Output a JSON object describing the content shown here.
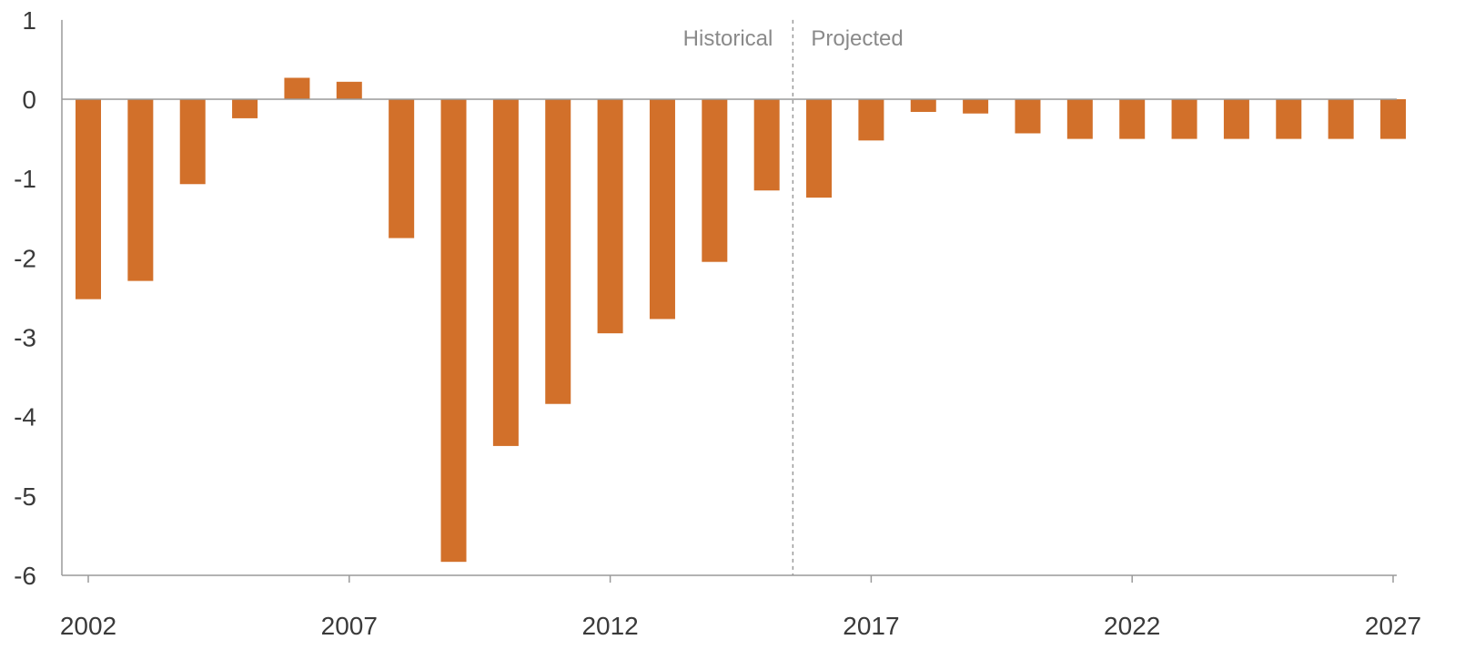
{
  "chart_data": {
    "type": "bar",
    "categories": [
      "2002",
      "2003",
      "2004",
      "2005",
      "2006",
      "2007",
      "2008",
      "2009",
      "2010",
      "2011",
      "2012",
      "2013",
      "2014",
      "2015",
      "2016",
      "2017",
      "2018",
      "2019",
      "2020",
      "2021",
      "2022",
      "2023",
      "2024",
      "2025",
      "2026",
      "2027"
    ],
    "values": [
      -2.52,
      -2.29,
      -1.07,
      -0.24,
      0.27,
      0.22,
      -1.75,
      -5.83,
      -4.37,
      -3.84,
      -2.95,
      -2.77,
      -2.05,
      -1.15,
      -1.24,
      -0.52,
      -0.16,
      -0.18,
      -0.43,
      -0.5,
      -0.5,
      -0.5,
      -0.5,
      -0.5,
      -0.5,
      -0.5
    ],
    "x_tick_labels": [
      "2002",
      "2007",
      "2012",
      "2017",
      "2022",
      "2027"
    ],
    "y_tick_labels": [
      "1",
      "0",
      "-1",
      "-2",
      "-3",
      "-4",
      "-5",
      "-6"
    ],
    "ylim": [
      -6,
      1
    ],
    "bar_color": "#D2702A",
    "divider_label_left": "Historical",
    "divider_label_right": "Projected",
    "divider_after_category": "2015",
    "grid": false
  }
}
